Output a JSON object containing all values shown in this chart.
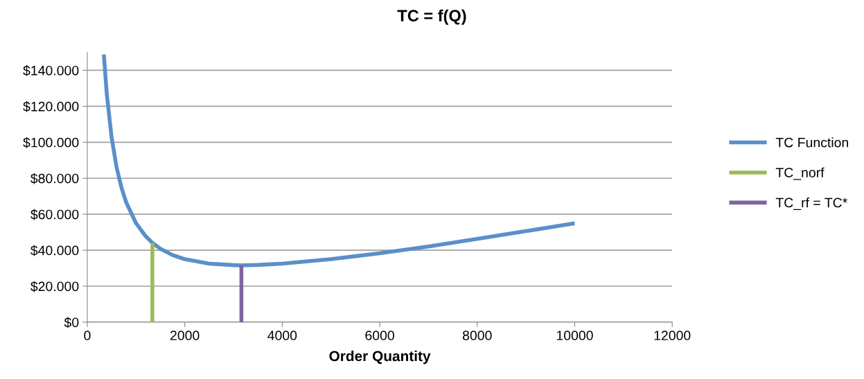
{
  "chart_data": {
    "type": "line",
    "title": "TC = f(Q)",
    "xlabel": "Order Quantity",
    "series": [
      {
        "name": "TC Function",
        "color": "#5b8fc9",
        "x": [
          340,
          400,
          500,
          600,
          700,
          800,
          1000,
          1200,
          1336,
          1500,
          1750,
          2000,
          2500,
          3000,
          3162,
          3500,
          4000,
          5000,
          6000,
          7000,
          8000,
          9000,
          10000
        ],
        "values": [
          148800,
          127000,
          102500,
          86300,
          74900,
          66500,
          55000,
          47700,
          44100,
          40800,
          37300,
          35000,
          32500,
          31700,
          31600,
          31800,
          32500,
          35000,
          38300,
          42100,
          46300,
          50600,
          55000
        ]
      },
      {
        "name": "TC_norf",
        "color": "#9bbb59",
        "x": [
          1336,
          1336
        ],
        "values": [
          0,
          44100
        ]
      },
      {
        "name": "TC_rf = TC*",
        "color": "#8064a2",
        "x": [
          3162,
          3162
        ],
        "values": [
          0,
          31600
        ]
      }
    ],
    "xlim": [
      0,
      12000
    ],
    "xticks": [
      0,
      2000,
      4000,
      6000,
      8000,
      10000,
      12000
    ],
    "ylim": [
      0,
      150000
    ],
    "yticks": [
      {
        "value": 0,
        "label": "$0"
      },
      {
        "value": 20000,
        "label": "$20.000"
      },
      {
        "value": 40000,
        "label": "$40.000"
      },
      {
        "value": 60000,
        "label": "$60.000"
      },
      {
        "value": 80000,
        "label": "$80.000"
      },
      {
        "value": 100000,
        "label": "$100.000"
      },
      {
        "value": 120000,
        "label": "$120.000"
      },
      {
        "value": 140000,
        "label": "$140.000"
      }
    ],
    "grid": "y",
    "legend": "right",
    "marker": "none",
    "line_style": "solid"
  }
}
